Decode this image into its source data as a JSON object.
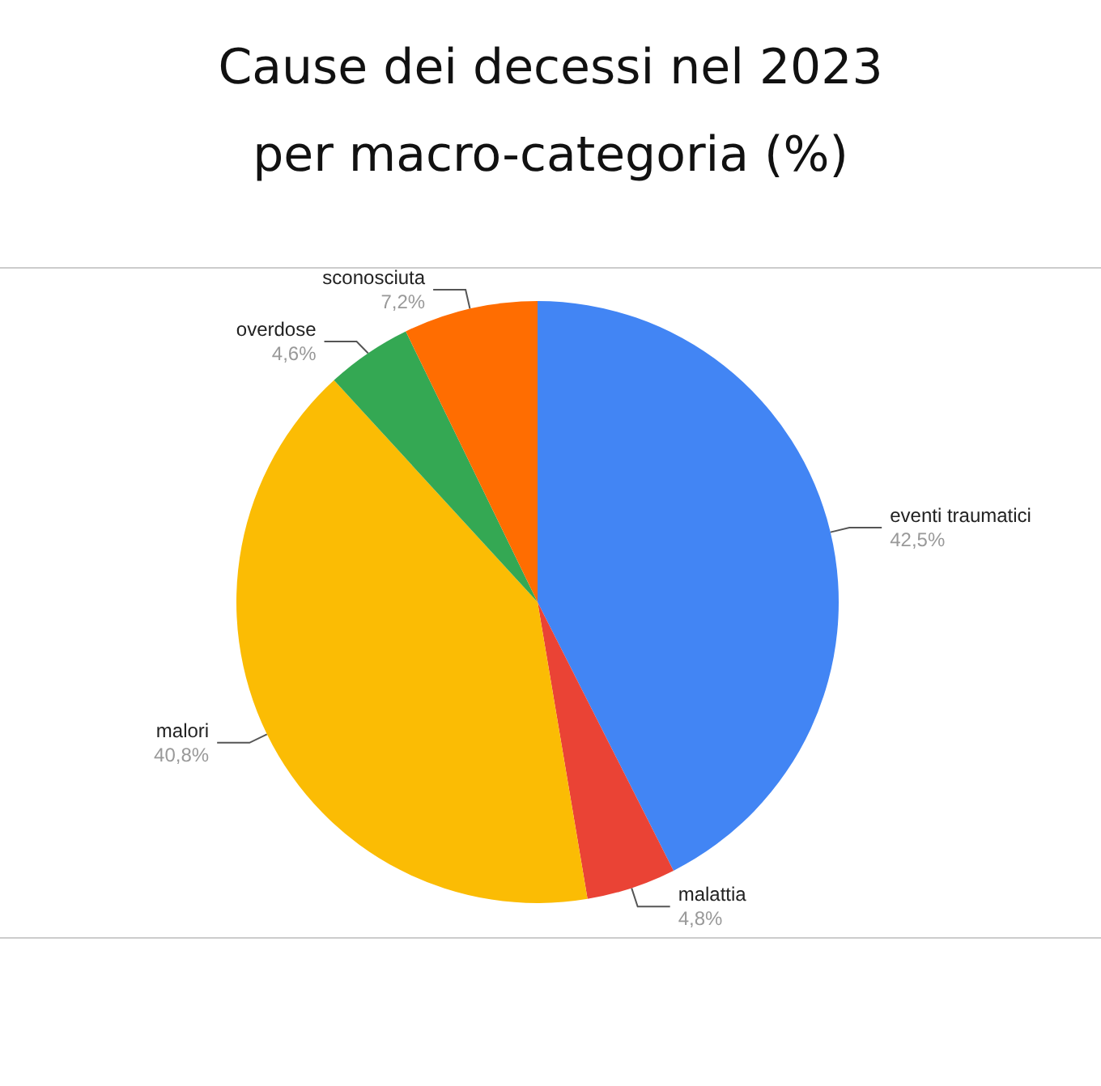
{
  "chart_data": {
    "type": "pie",
    "title": "Cause dei decessi nel 2023\nper macro-categoria (%)",
    "categories": [
      "eventi traumatici",
      "malattia",
      "malori",
      "overdose",
      "sconosciuta"
    ],
    "values": [
      42.5,
      4.8,
      40.8,
      4.6,
      7.2
    ],
    "value_labels": [
      "42,5%",
      "4,8%",
      "40,8%",
      "4,6%",
      "7,2%"
    ],
    "colors": [
      "#4285f4",
      "#ea4335",
      "#fbbc04",
      "#34a853",
      "#ff6d01"
    ],
    "legend": false
  }
}
